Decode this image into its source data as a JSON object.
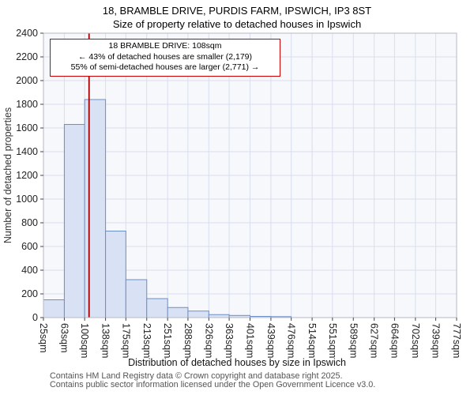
{
  "page": {
    "title_line1": "18, BRAMBLE DRIVE, PURDIS FARM, IPSWICH, IP3 8ST",
    "title_line2": "Size of property relative to detached houses in Ipswich",
    "footer_line1": "Contains HM Land Registry data © Crown copyright and database right 2025.",
    "footer_line2": "Contains public sector information licensed under the Open Government Licence v3.0."
  },
  "annotation": {
    "line1": "18 BRAMBLE DRIVE: 108sqm",
    "line2": "← 43% of detached houses are smaller (2,179)",
    "line3": "55% of semi-detached houses are larger (2,771) →"
  },
  "chart_data": {
    "type": "bar",
    "title": "18, BRAMBLE DRIVE, PURDIS FARM, IPSWICH, IP3 8ST — Size of property relative to detached houses in Ipswich",
    "xlabel": "Distribution of detached houses by size in Ipswich",
    "ylabel": "Number of detached properties",
    "x_tick_labels": [
      "25sqm",
      "63sqm",
      "100sqm",
      "138sqm",
      "175sqm",
      "213sqm",
      "251sqm",
      "288sqm",
      "326sqm",
      "363sqm",
      "401sqm",
      "439sqm",
      "476sqm",
      "514sqm",
      "551sqm",
      "589sqm",
      "627sqm",
      "664sqm",
      "702sqm",
      "739sqm",
      "777sqm"
    ],
    "bin_edges_sqm": [
      25,
      63,
      100,
      138,
      175,
      213,
      251,
      288,
      326,
      363,
      401,
      439,
      476,
      514,
      551,
      589,
      627,
      664,
      702,
      739,
      777
    ],
    "values": [
      150,
      1630,
      1840,
      730,
      320,
      160,
      85,
      55,
      25,
      18,
      10,
      8,
      0,
      0,
      0,
      0,
      0,
      0,
      0,
      0
    ],
    "ylim": [
      0,
      2400
    ],
    "ytick_step": 200,
    "marker_value_sqm": 108,
    "grid": true,
    "legend": "none",
    "colors": {
      "bar_fill": "#d9e2f4",
      "bar_border": "#6d8dc7",
      "marker_line": "#a40000",
      "grid": "#d8deee",
      "plot_bg": "#f7f8fc",
      "plot_border": "#b5b9c4",
      "tick": "#444444",
      "tick_text": "#222222",
      "annotation_border": "#cc0000"
    }
  }
}
